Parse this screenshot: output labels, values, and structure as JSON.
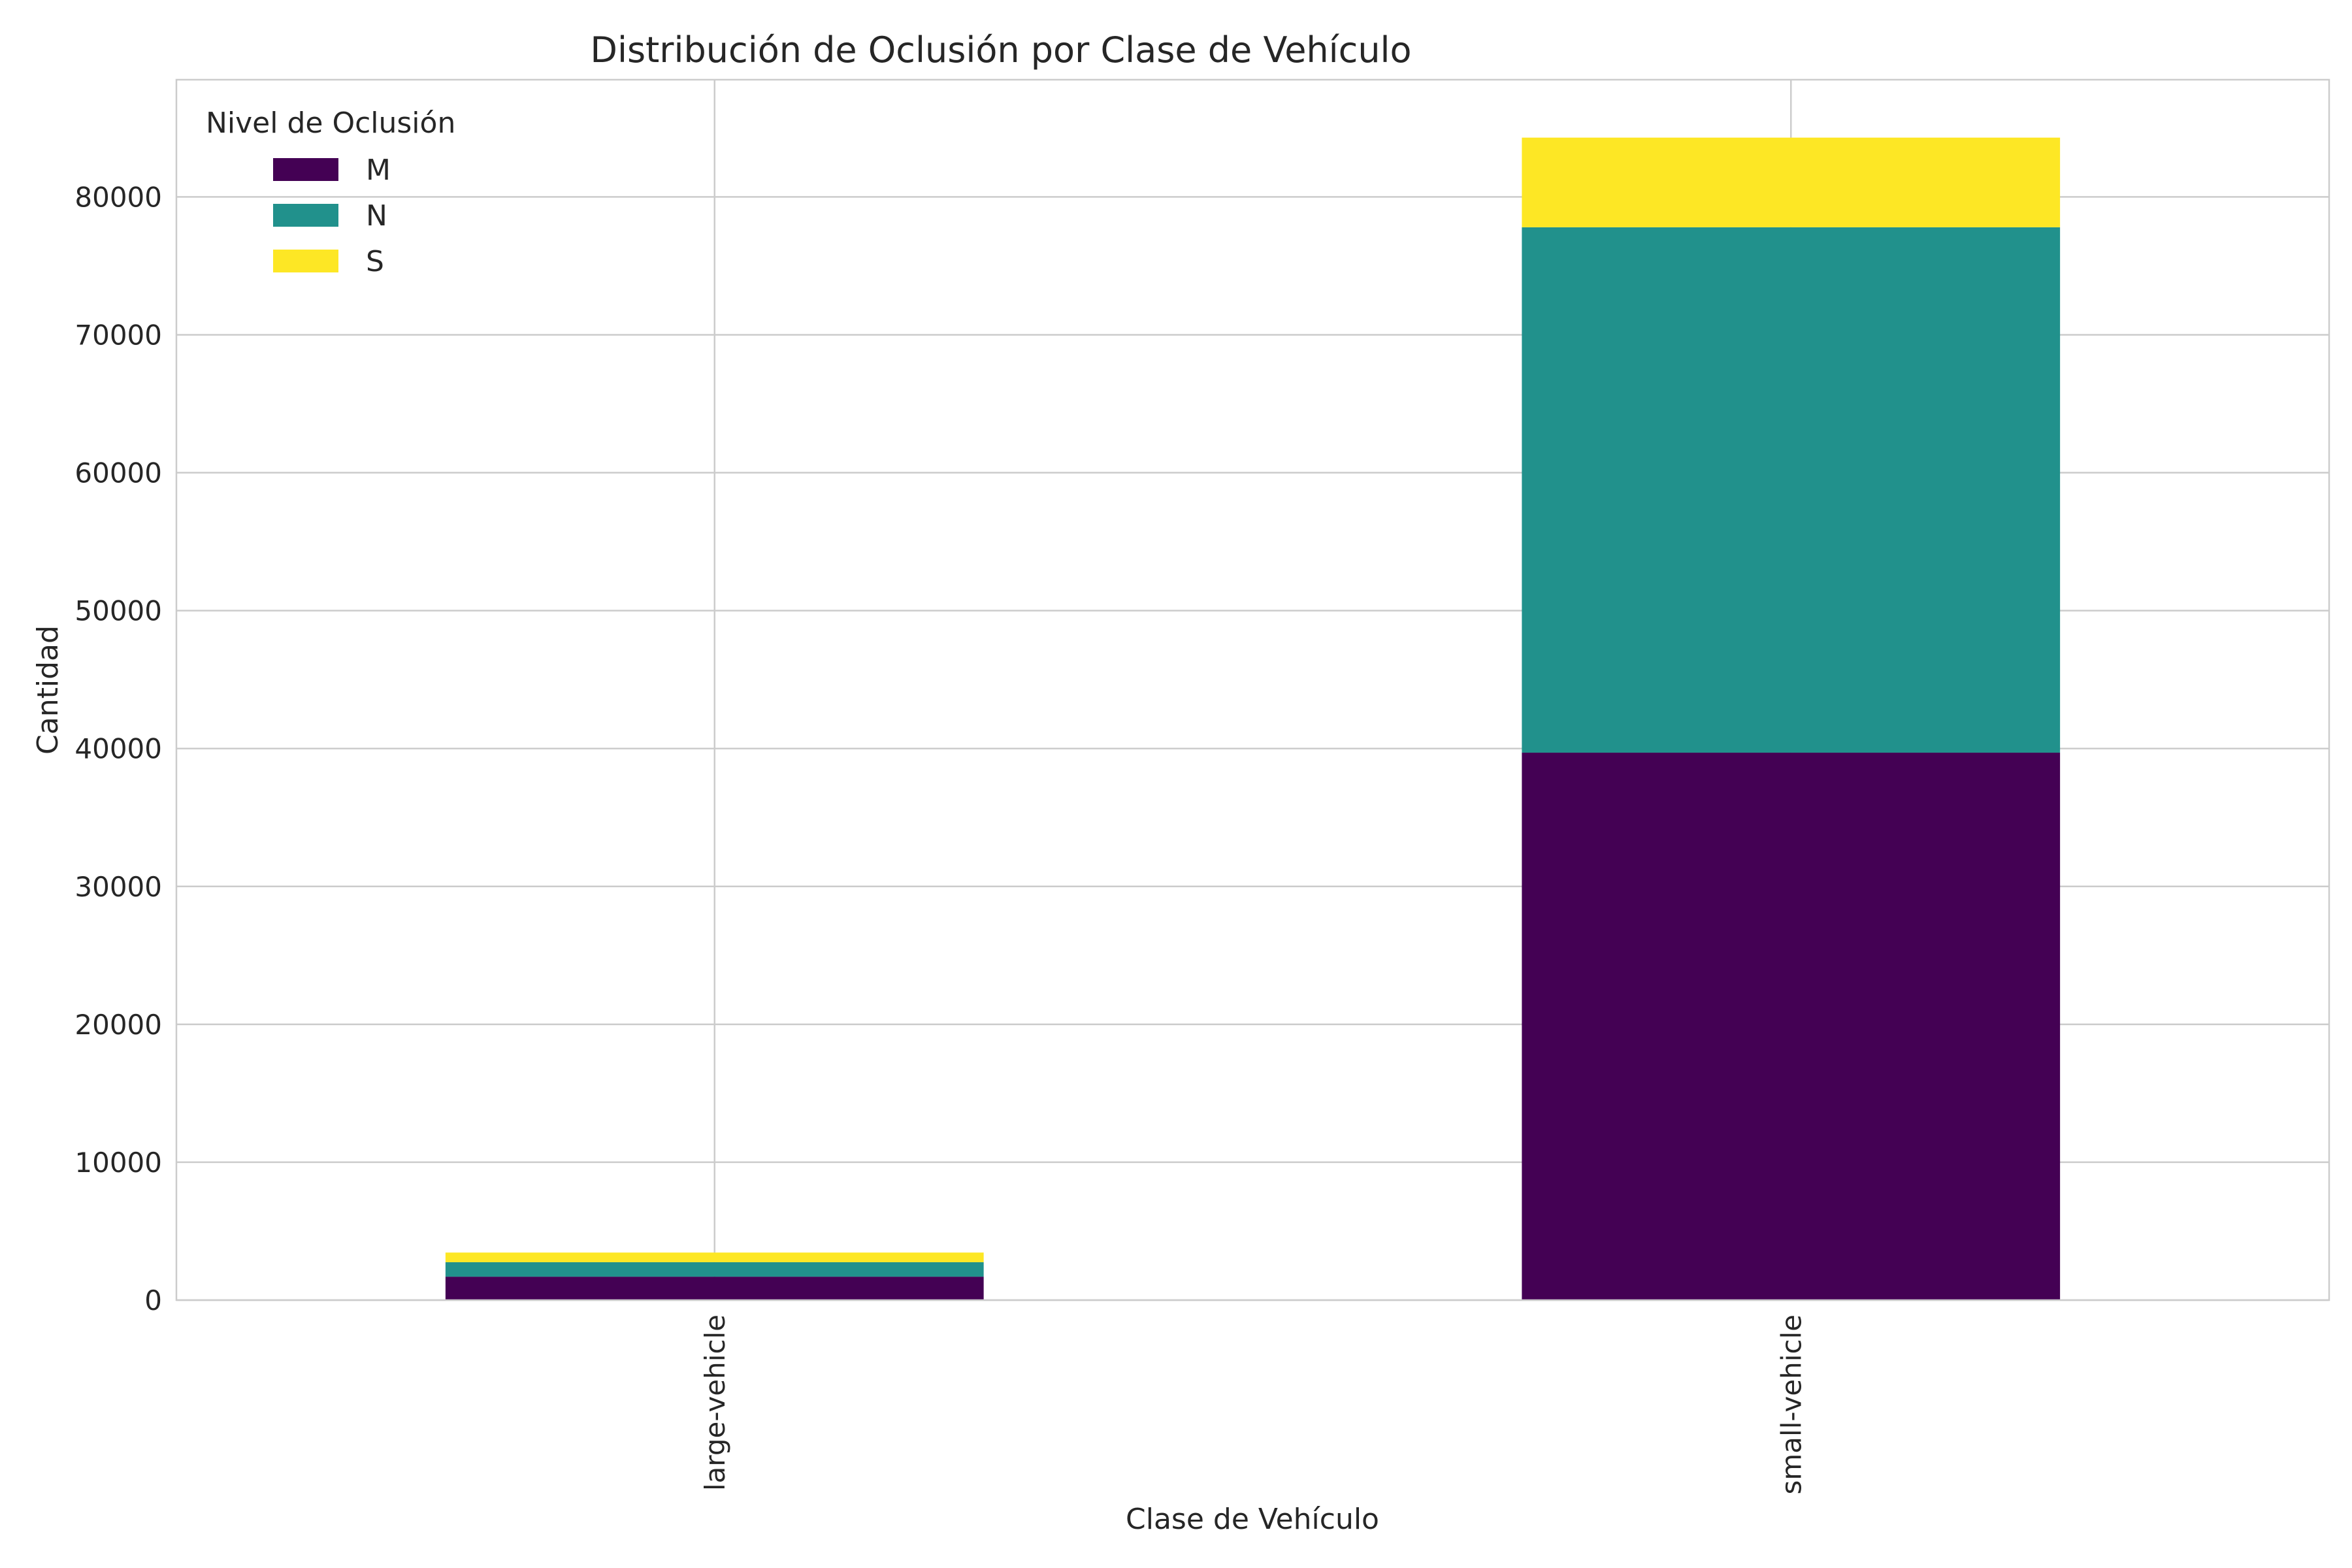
{
  "chart_data": {
    "type": "bar",
    "stacked": true,
    "title": "Distribución de Oclusión por Clase de Vehículo",
    "xlabel": "Clase de Vehículo",
    "ylabel": "Cantidad",
    "categories": [
      "large-vehicle",
      "small-vehicle"
    ],
    "series": [
      {
        "name": "M",
        "color": "#440154",
        "values": [
          1700,
          39700
        ]
      },
      {
        "name": "N",
        "color": "#21918c",
        "values": [
          1050,
          38100
        ]
      },
      {
        "name": "S",
        "color": "#fde725",
        "values": [
          700,
          6500
        ]
      }
    ],
    "ylim": [
      0,
      88500
    ],
    "yticks": [
      0,
      10000,
      20000,
      30000,
      40000,
      50000,
      60000,
      70000,
      80000
    ],
    "grid": true,
    "legend": {
      "title": "Nivel de Oclusión",
      "position": "upper-left"
    }
  }
}
